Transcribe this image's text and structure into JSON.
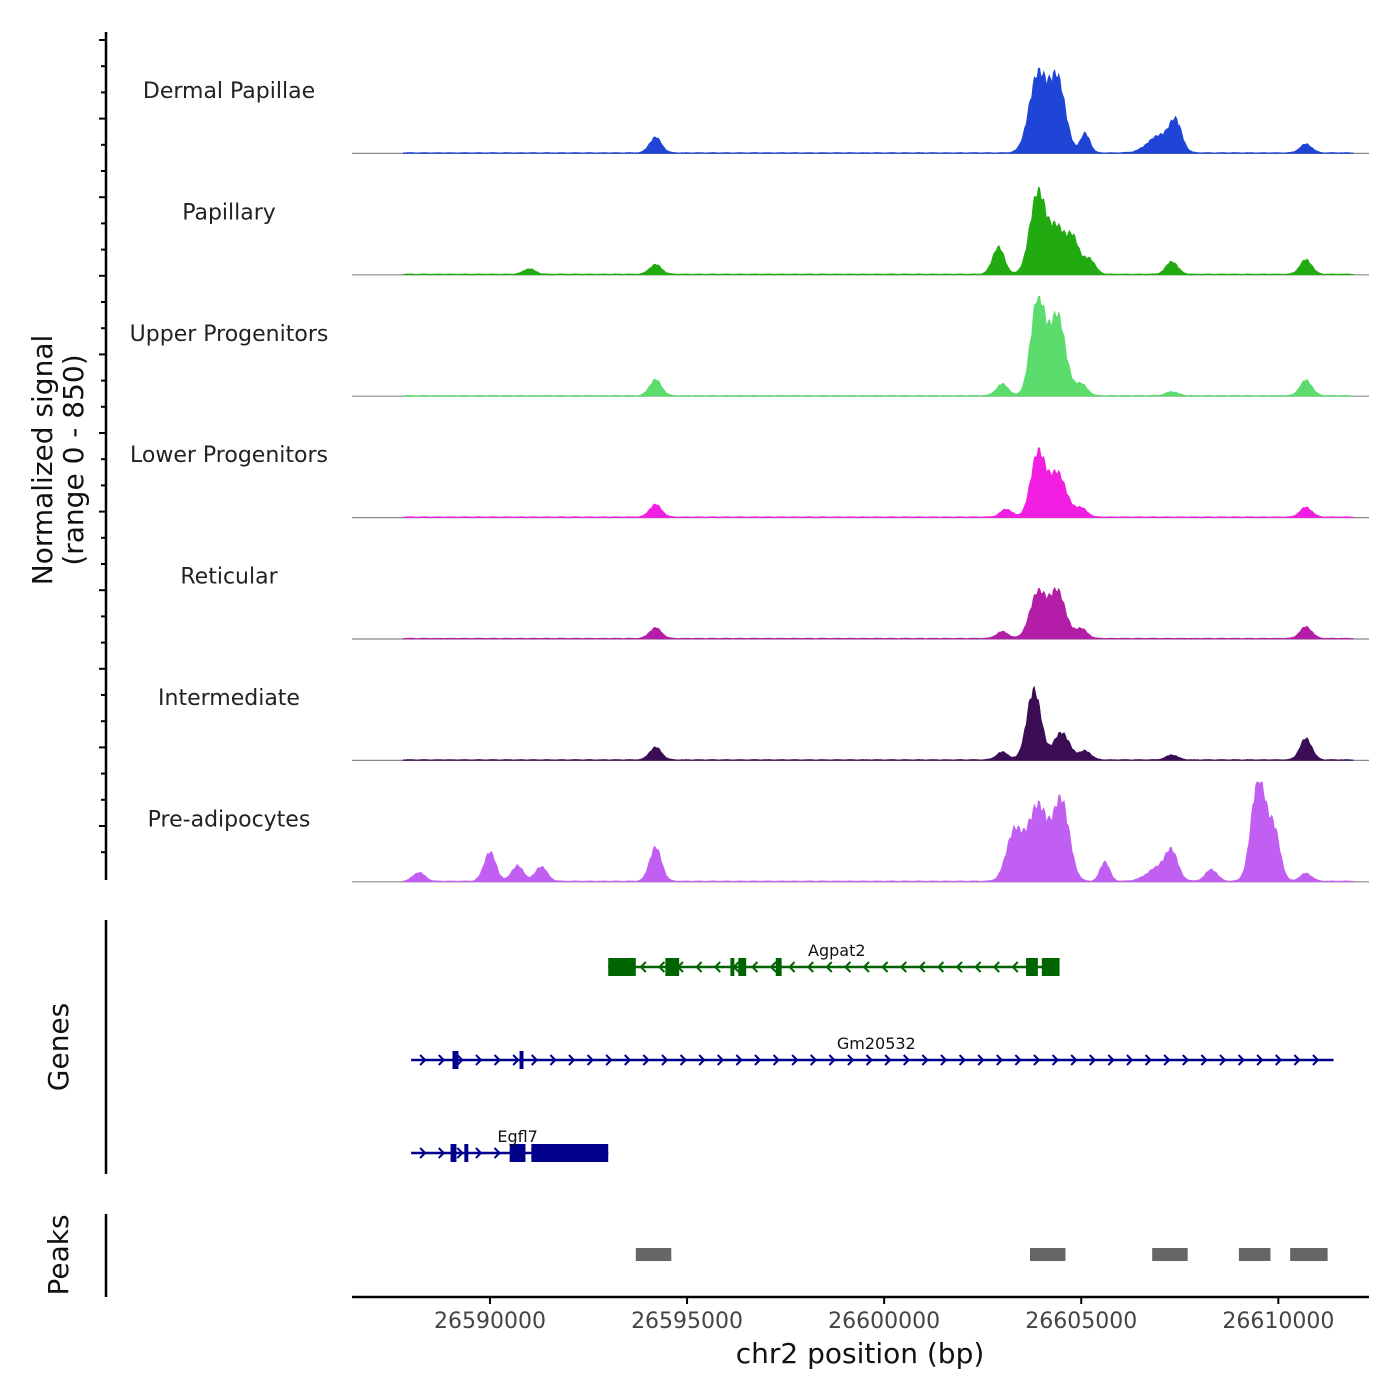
{
  "chart_data": {
    "type": "area",
    "title": "",
    "ylabel_line1": "Normalized signal",
    "ylabel_line2": "(range 0 - 850)",
    "ylim": [
      0,
      850
    ],
    "xlabel": "chr2 position (bp)",
    "xlim": [
      26586500,
      26612300
    ],
    "x_ticks": [
      26590000,
      26595000,
      26600000,
      26605000,
      26610000
    ],
    "x_tick_labels": [
      "26590000",
      "26595000",
      "26600000",
      "26605000",
      "26610000"
    ],
    "tracks": [
      {
        "name": "Dermal Papillae",
        "color": "#1f45d6",
        "peaks": [
          [
            26594200,
            160,
            150
          ],
          [
            26603900,
            800,
            220
          ],
          [
            26604400,
            740,
            200
          ],
          [
            26605100,
            200,
            120
          ],
          [
            26607000,
            180,
            300
          ],
          [
            26607400,
            280,
            150
          ],
          [
            26610700,
            90,
            150
          ]
        ]
      },
      {
        "name": "Papillary",
        "color": "#22aa11",
        "peaks": [
          [
            26591000,
            55,
            150
          ],
          [
            26594200,
            100,
            150
          ],
          [
            26602900,
            280,
            150
          ],
          [
            26603900,
            840,
            200
          ],
          [
            26604400,
            460,
            200
          ],
          [
            26604800,
            340,
            150
          ],
          [
            26605200,
            160,
            150
          ],
          [
            26607300,
            130,
            150
          ],
          [
            26610700,
            150,
            150
          ]
        ]
      },
      {
        "name": "Upper Progenitors",
        "color": "#5ddc6e",
        "peaks": [
          [
            26594200,
            165,
            150
          ],
          [
            26603000,
            120,
            150
          ],
          [
            26603900,
            1000,
            180
          ],
          [
            26604400,
            820,
            200
          ],
          [
            26605000,
            120,
            150
          ],
          [
            26607300,
            40,
            150
          ],
          [
            26610700,
            160,
            150
          ]
        ]
      },
      {
        "name": "Lower Progenitors",
        "color": "#f21ee1",
        "peaks": [
          [
            26594200,
            130,
            150
          ],
          [
            26603100,
            80,
            150
          ],
          [
            26603900,
            650,
            180
          ],
          [
            26604400,
            450,
            220
          ],
          [
            26605000,
            90,
            150
          ],
          [
            26610700,
            100,
            150
          ]
        ]
      },
      {
        "name": "Reticular",
        "color": "#b41da8",
        "peaks": [
          [
            26594200,
            110,
            150
          ],
          [
            26603000,
            70,
            150
          ],
          [
            26603900,
            470,
            200
          ],
          [
            26604400,
            480,
            200
          ],
          [
            26605000,
            100,
            150
          ],
          [
            26610700,
            120,
            150
          ]
        ]
      },
      {
        "name": "Intermediate",
        "color": "#3a0d55",
        "peaks": [
          [
            26594200,
            130,
            150
          ],
          [
            26603000,
            80,
            150
          ],
          [
            26603800,
            720,
            180
          ],
          [
            26604500,
            280,
            200
          ],
          [
            26605100,
            90,
            150
          ],
          [
            26607300,
            50,
            150
          ],
          [
            26610700,
            220,
            150
          ]
        ]
      },
      {
        "name": "Pre-adipocytes",
        "color": "#c15ff2",
        "peaks": [
          [
            26588200,
            90,
            150
          ],
          [
            26590000,
            300,
            150
          ],
          [
            26590700,
            160,
            150
          ],
          [
            26591300,
            150,
            150
          ],
          [
            26594200,
            350,
            150
          ],
          [
            26603300,
            500,
            200
          ],
          [
            26603900,
            780,
            250
          ],
          [
            26604500,
            810,
            200
          ],
          [
            26605600,
            200,
            120
          ],
          [
            26607000,
            150,
            300
          ],
          [
            26607300,
            240,
            150
          ],
          [
            26608300,
            120,
            150
          ],
          [
            26609500,
            1080,
            180
          ],
          [
            26609900,
            500,
            150
          ],
          [
            26610700,
            80,
            150
          ]
        ]
      }
    ],
    "genes_label": "Genes",
    "genes": [
      {
        "name": "Agpat2",
        "strand": "-",
        "color": "#006400",
        "row": 0,
        "start": 26593000,
        "end": 26604450,
        "exons": [
          [
            26593000,
            26593700
          ],
          [
            26594450,
            26594800
          ],
          [
            26596100,
            26596200
          ],
          [
            26596300,
            26596500
          ],
          [
            26597250,
            26597400
          ],
          [
            26603600,
            26603900
          ],
          [
            26604000,
            26604450
          ]
        ]
      },
      {
        "name": "Gm20532",
        "strand": "+",
        "color": "#00008b",
        "row": 1,
        "start": 26588000,
        "end": 26611400,
        "exons": [
          [
            26589050,
            26589200
          ],
          [
            26590750,
            26590850
          ]
        ]
      },
      {
        "name": "Egfl7",
        "strand": "+",
        "color": "#00008b",
        "row": 2,
        "start": 26588000,
        "end": 26593000,
        "exons": [
          [
            26589000,
            26589150
          ],
          [
            26589350,
            26589450
          ],
          [
            26590500,
            26590900
          ],
          [
            26591050,
            26593000
          ]
        ]
      }
    ],
    "peaks_label": "Peaks",
    "peaks_color": "#666666",
    "peak_regions": [
      [
        26593700,
        26594600
      ],
      [
        26603700,
        26604600
      ],
      [
        26606800,
        26607700
      ],
      [
        26609000,
        26609800
      ],
      [
        26610300,
        26611250
      ]
    ]
  }
}
